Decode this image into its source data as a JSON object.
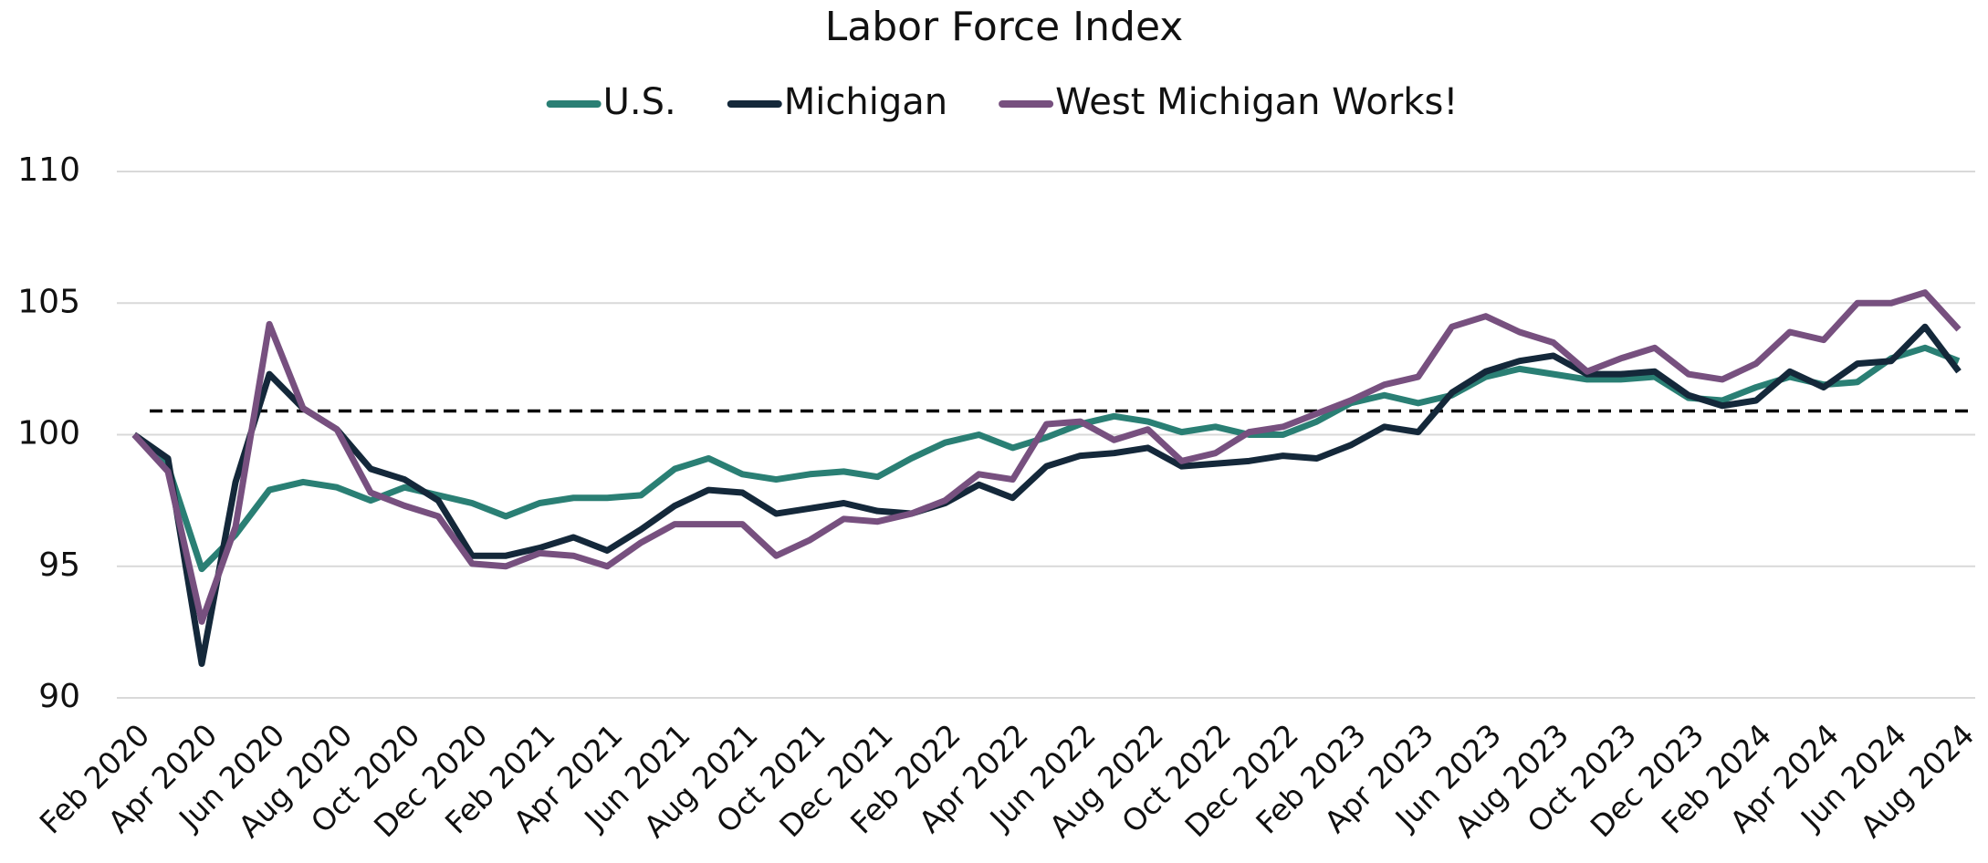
{
  "chart_data": {
    "type": "line",
    "title": "Labor Force Index",
    "categories": [
      "Feb 2020",
      null,
      "Apr 2020",
      null,
      "Jun 2020",
      null,
      "Aug 2020",
      null,
      "Oct 2020",
      null,
      "Dec 2020",
      null,
      "Feb 2021",
      null,
      "Apr 2021",
      null,
      "Jun 2021",
      null,
      "Aug 2021",
      null,
      "Oct 2021",
      null,
      "Dec 2021",
      null,
      "Feb 2022",
      null,
      "Apr 2022",
      null,
      "Jun 2022",
      null,
      "Aug 2022",
      null,
      "Oct 2022",
      null,
      "Dec 2022",
      null,
      "Feb 2023",
      null,
      "Apr 2023",
      null,
      "Jun 2023",
      null,
      "Aug 2023",
      null,
      "Oct 2023",
      null,
      "Dec 2023",
      null,
      "Feb 2024",
      null,
      "Apr 2024",
      null,
      "Jun 2024",
      null,
      "Aug 2024"
    ],
    "series": [
      {
        "name": "U.S.",
        "color": "#2a7f74",
        "values": [
          100,
          98.8,
          94.9,
          96.2,
          97.9,
          98.2,
          98.0,
          97.5,
          98.0,
          97.7,
          97.4,
          96.9,
          97.4,
          97.6,
          97.6,
          97.7,
          98.7,
          99.1,
          98.5,
          98.3,
          98.5,
          98.6,
          98.4,
          99.1,
          99.7,
          100.0,
          99.5,
          99.9,
          100.4,
          100.7,
          100.5,
          100.1,
          100.3,
          100.0,
          100.0,
          100.5,
          101.2,
          101.5,
          101.2,
          101.5,
          102.2,
          102.5,
          102.3,
          102.1,
          102.1,
          102.2,
          101.4,
          101.3,
          101.8,
          102.2,
          101.9,
          102.0,
          102.9,
          103.3,
          102.8
        ]
      },
      {
        "name": "Michigan",
        "color": "#14283a",
        "values": [
          100,
          99.1,
          91.3,
          98.2,
          102.3,
          101.0,
          100.2,
          98.7,
          98.3,
          97.5,
          95.4,
          95.4,
          95.7,
          96.1,
          95.6,
          96.4,
          97.3,
          97.9,
          97.8,
          97.0,
          97.2,
          97.4,
          97.1,
          97.0,
          97.4,
          98.1,
          97.6,
          98.8,
          99.2,
          99.3,
          99.5,
          98.8,
          98.9,
          99.0,
          99.2,
          99.1,
          99.6,
          100.3,
          100.1,
          101.6,
          102.4,
          102.8,
          103.0,
          102.3,
          102.3,
          102.4,
          101.5,
          101.1,
          101.3,
          102.4,
          101.8,
          102.7,
          102.8,
          104.1,
          102.4
        ]
      },
      {
        "name": "West Michigan Works!",
        "color": "#77507f",
        "values": [
          100,
          98.6,
          92.9,
          96.5,
          104.2,
          101.0,
          100.2,
          97.8,
          97.3,
          96.9,
          95.1,
          95.0,
          95.5,
          95.4,
          95.0,
          95.9,
          96.6,
          96.6,
          96.6,
          95.4,
          96.0,
          96.8,
          96.7,
          97.0,
          97.5,
          98.5,
          98.3,
          100.4,
          100.5,
          99.8,
          100.2,
          99.0,
          99.3,
          100.1,
          100.3,
          100.8,
          101.3,
          101.9,
          102.2,
          104.1,
          104.5,
          103.9,
          103.5,
          102.4,
          102.9,
          103.3,
          102.3,
          102.1,
          102.7,
          103.9,
          103.6,
          105.0,
          105.0,
          105.4,
          104.0
        ]
      }
    ],
    "reference_line": 100.9,
    "ylim": [
      90,
      110
    ],
    "yticks": [
      90,
      95,
      100,
      105,
      110
    ],
    "grid": true,
    "legend": "top"
  }
}
